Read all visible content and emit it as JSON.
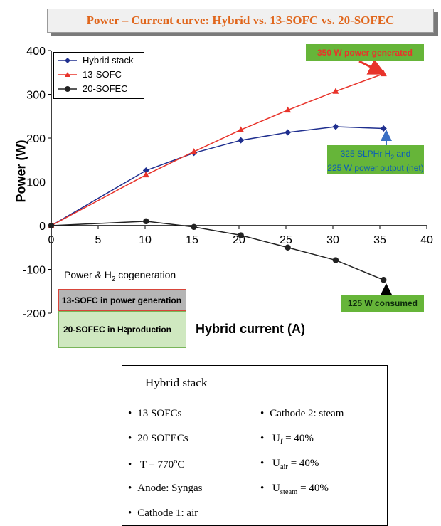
{
  "title": "Power – Current curve: Hybrid vs. 13-SOFC vs. 20-SOFEC",
  "chart_data": {
    "type": "line",
    "title": "Power – Current curve: Hybrid vs. 13-SOFC vs. 20-SOFEC",
    "xlabel": "Hybrid current (A)",
    "ylabel": "Power (W)",
    "xlim": [
      0,
      40
    ],
    "ylim": [
      -200,
      400
    ],
    "x_ticks": [
      0,
      5,
      10,
      15,
      20,
      25,
      30,
      35,
      40
    ],
    "y_ticks": [
      -200,
      -100,
      0,
      100,
      200,
      300,
      400
    ],
    "legend_position": "top-left",
    "grid": false,
    "series": [
      {
        "name": "Hybrid stack",
        "color": "#1f2f8f",
        "marker": "diamond",
        "x": [
          0,
          10.1,
          15.2,
          20.2,
          25.2,
          30.3,
          35.4
        ],
        "y": [
          0,
          126,
          166,
          195,
          213,
          226,
          222
        ]
      },
      {
        "name": "13-SOFC",
        "color": "#e8332a",
        "marker": "triangle",
        "x": [
          0,
          10.1,
          15.2,
          20.2,
          25.2,
          30.3,
          35.4
        ],
        "y": [
          0,
          116,
          169,
          219,
          264,
          307,
          347
        ]
      },
      {
        "name": "20-SOFEC",
        "color": "#222222",
        "marker": "circle",
        "x": [
          0,
          10.1,
          15.2,
          20.2,
          25.2,
          30.3,
          35.4
        ],
        "y": [
          0,
          10,
          -3,
          -22,
          -50,
          -79,
          -124
        ]
      }
    ],
    "annotations": {
      "a350": "350 W power generated",
      "a325_l1": "325 SLPHr H",
      "a325_sub": "2",
      "a325_l1b": " and",
      "a325_l2": "225 W power output (net)",
      "a125": "125 W consumed",
      "cogen_pre": "Power & H",
      "cogen_sub": "2",
      "cogen_post": " cogeneration",
      "box_power": "13-SOFC in power generation",
      "box_h2_pre": "20-SOFEC in H",
      "box_h2_sub": "2",
      "box_h2_post": " production"
    }
  },
  "info": {
    "heading": "Hybrid stack",
    "left": [
      "13 SOFCs",
      "20 SOFECs",
      "T = 770",
      "Anode: Syngas",
      "Cathode 1: air"
    ],
    "temp_sup": "o",
    "temp_unit": "C",
    "right": [
      {
        "pre": "Cathode 2: steam",
        "sub": "",
        "post": ""
      },
      {
        "pre": "U",
        "sub": "f",
        "post": " = 40%"
      },
      {
        "pre": "U",
        "sub": "air",
        "post": " = 40%"
      },
      {
        "pre": "U",
        "sub": "steam",
        "post": " = 40%"
      }
    ]
  }
}
